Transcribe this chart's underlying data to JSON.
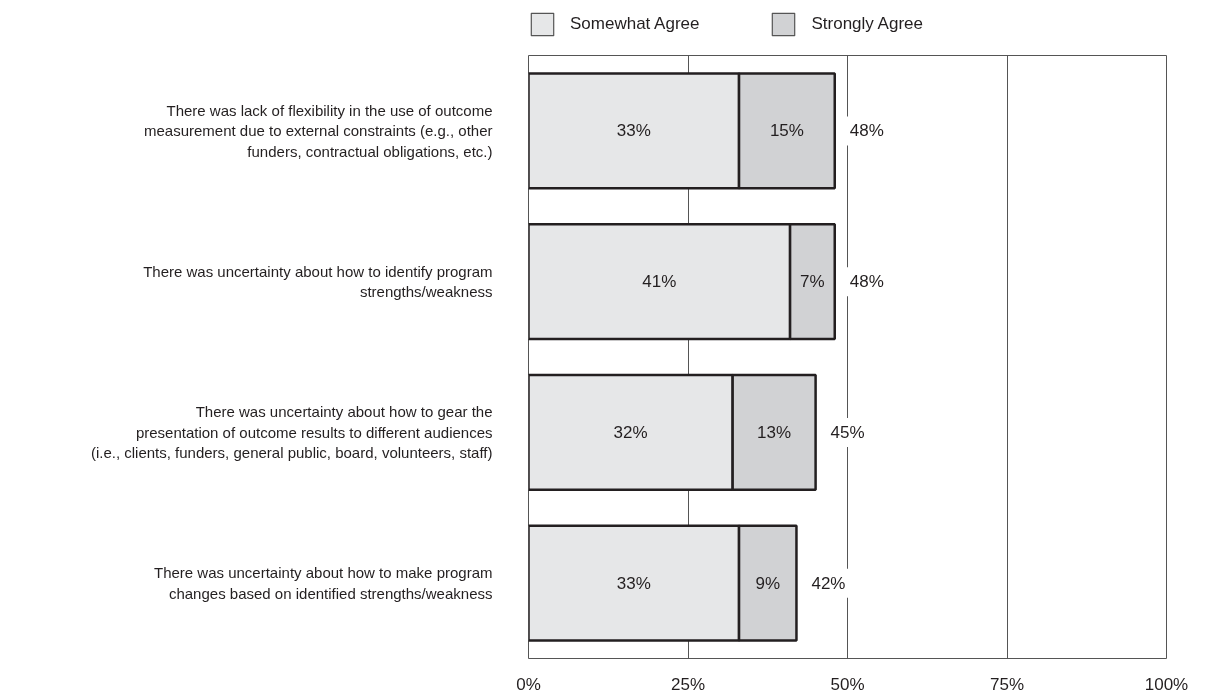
{
  "chart_data": {
    "type": "bar",
    "orientation": "horizontal",
    "stacked": true,
    "categories": [
      "There was lack of flexibility in the use of outcome\nmeasurement due to external constraints (e.g., other\nfunders, contractual obligations, etc.)",
      "There was uncertainty about how to identify program\nstrengths/weakness",
      "There was uncertainty about how to gear the\npresentation of outcome results to different audiences\n(i.e., clients, funders, general public, board, volunteers, staff)",
      "There was uncertainty about how to make program\nchanges based on identified strengths/weakness"
    ],
    "series": [
      {
        "name": "Somewhat Agree",
        "color": "#e6e7e8",
        "values": [
          33,
          41,
          32,
          33
        ],
        "value_labels": [
          "33%",
          "41%",
          "32%",
          "33%"
        ]
      },
      {
        "name": "Strongly Agree",
        "color": "#d1d2d4",
        "values": [
          15,
          7,
          13,
          9
        ],
        "value_labels": [
          "15%",
          "7%",
          "13%",
          "9%"
        ]
      }
    ],
    "totals": [
      "48%",
      "48%",
      "45%",
      "42%"
    ],
    "xlim": [
      0,
      100
    ],
    "xticks": [
      {
        "value": 0,
        "label": "0%"
      },
      {
        "value": 25,
        "label": "25%"
      },
      {
        "value": 50,
        "label": "50%"
      },
      {
        "value": 75,
        "label": "75%"
      },
      {
        "value": 100,
        "label": "100%"
      }
    ],
    "grid": "x",
    "legend": "top"
  }
}
